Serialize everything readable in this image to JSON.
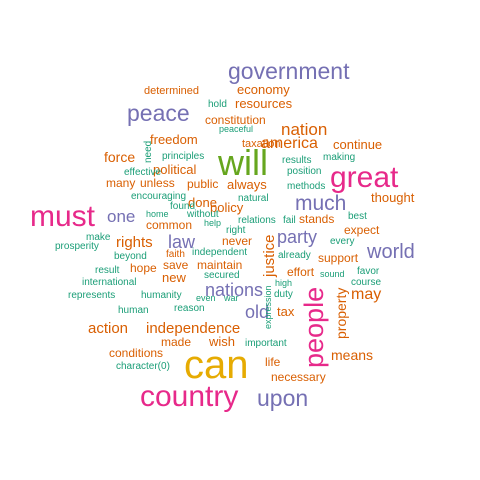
{
  "palette": {
    "teal": "#1b9e77",
    "orange": "#d95f02",
    "purple": "#7570b3",
    "magenta": "#e7298a",
    "green": "#66a61e",
    "gold": "#e6ab02"
  },
  "words": [
    {
      "text": "can",
      "color": "gold"
    },
    {
      "text": "will",
      "color": "green"
    },
    {
      "text": "must",
      "color": "magenta"
    },
    {
      "text": "great",
      "color": "magenta"
    },
    {
      "text": "country",
      "color": "magenta"
    },
    {
      "text": "government",
      "color": "purple"
    },
    {
      "text": "people",
      "color": "magenta"
    },
    {
      "text": "peace",
      "color": "purple"
    },
    {
      "text": "upon",
      "color": "purple"
    },
    {
      "text": "much",
      "color": "purple"
    },
    {
      "text": "world",
      "color": "purple"
    },
    {
      "text": "nation",
      "color": "orange"
    },
    {
      "text": "one",
      "color": "purple"
    },
    {
      "text": "law",
      "color": "purple"
    },
    {
      "text": "party",
      "color": "purple"
    },
    {
      "text": "nations",
      "color": "purple"
    },
    {
      "text": "america",
      "color": "orange"
    },
    {
      "text": "old",
      "color": "purple"
    },
    {
      "text": "may",
      "color": "orange"
    },
    {
      "text": "rights",
      "color": "orange"
    },
    {
      "text": "justice",
      "color": "orange"
    },
    {
      "text": "property",
      "color": "orange"
    },
    {
      "text": "action",
      "color": "orange"
    },
    {
      "text": "independence",
      "color": "orange"
    },
    {
      "text": "means",
      "color": "orange"
    },
    {
      "text": "force",
      "color": "orange"
    },
    {
      "text": "economy",
      "color": "orange"
    },
    {
      "text": "resources",
      "color": "orange"
    },
    {
      "text": "thought",
      "color": "orange"
    },
    {
      "text": "continue",
      "color": "orange"
    },
    {
      "text": "freedom",
      "color": "orange"
    },
    {
      "text": "political",
      "color": "orange"
    },
    {
      "text": "always",
      "color": "orange"
    },
    {
      "text": "done",
      "color": "orange"
    },
    {
      "text": "policy",
      "color": "orange"
    },
    {
      "text": "many",
      "color": "orange"
    },
    {
      "text": "unless",
      "color": "orange"
    },
    {
      "text": "public",
      "color": "orange"
    },
    {
      "text": "constitution",
      "color": "orange"
    },
    {
      "text": "common",
      "color": "orange"
    },
    {
      "text": "never",
      "color": "orange"
    },
    {
      "text": "expect",
      "color": "orange"
    },
    {
      "text": "support",
      "color": "orange"
    },
    {
      "text": "stands",
      "color": "orange"
    },
    {
      "text": "maintain",
      "color": "orange"
    },
    {
      "text": "hope",
      "color": "orange"
    },
    {
      "text": "save",
      "color": "orange"
    },
    {
      "text": "new",
      "color": "orange"
    },
    {
      "text": "effort",
      "color": "orange"
    },
    {
      "text": "tax",
      "color": "orange"
    },
    {
      "text": "wish",
      "color": "orange"
    },
    {
      "text": "conditions",
      "color": "orange"
    },
    {
      "text": "made",
      "color": "orange"
    },
    {
      "text": "life",
      "color": "orange"
    },
    {
      "text": "necessary",
      "color": "orange"
    },
    {
      "text": "determined",
      "color": "orange"
    },
    {
      "text": "taxation",
      "color": "orange"
    },
    {
      "text": "faith",
      "color": "orange"
    },
    {
      "text": "hold",
      "color": "teal"
    },
    {
      "text": "peaceful",
      "color": "teal"
    },
    {
      "text": "need",
      "color": "teal"
    },
    {
      "text": "principles",
      "color": "teal"
    },
    {
      "text": "effective",
      "color": "teal"
    },
    {
      "text": "encouraging",
      "color": "teal"
    },
    {
      "text": "results",
      "color": "teal"
    },
    {
      "text": "making",
      "color": "teal"
    },
    {
      "text": "position",
      "color": "teal"
    },
    {
      "text": "methods",
      "color": "teal"
    },
    {
      "text": "natural",
      "color": "teal"
    },
    {
      "text": "found",
      "color": "teal"
    },
    {
      "text": "without",
      "color": "teal"
    },
    {
      "text": "home",
      "color": "teal"
    },
    {
      "text": "help",
      "color": "teal"
    },
    {
      "text": "relations",
      "color": "teal"
    },
    {
      "text": "fail",
      "color": "teal"
    },
    {
      "text": "right",
      "color": "teal"
    },
    {
      "text": "best",
      "color": "teal"
    },
    {
      "text": "every",
      "color": "teal"
    },
    {
      "text": "make",
      "color": "teal"
    },
    {
      "text": "prosperity",
      "color": "teal"
    },
    {
      "text": "beyond",
      "color": "teal"
    },
    {
      "text": "independent",
      "color": "teal"
    },
    {
      "text": "already",
      "color": "teal"
    },
    {
      "text": "result",
      "color": "teal"
    },
    {
      "text": "international",
      "color": "teal"
    },
    {
      "text": "secured",
      "color": "teal"
    },
    {
      "text": "high",
      "color": "teal"
    },
    {
      "text": "sound",
      "color": "teal"
    },
    {
      "text": "favor",
      "color": "teal"
    },
    {
      "text": "course",
      "color": "teal"
    },
    {
      "text": "represents",
      "color": "teal"
    },
    {
      "text": "humanity",
      "color": "teal"
    },
    {
      "text": "even",
      "color": "teal"
    },
    {
      "text": "war",
      "color": "teal"
    },
    {
      "text": "duty",
      "color": "teal"
    },
    {
      "text": "human",
      "color": "teal"
    },
    {
      "text": "reason",
      "color": "teal"
    },
    {
      "text": "expression",
      "color": "teal"
    },
    {
      "text": "important",
      "color": "teal"
    },
    {
      "text": "character(0)",
      "color": "teal"
    }
  ]
}
